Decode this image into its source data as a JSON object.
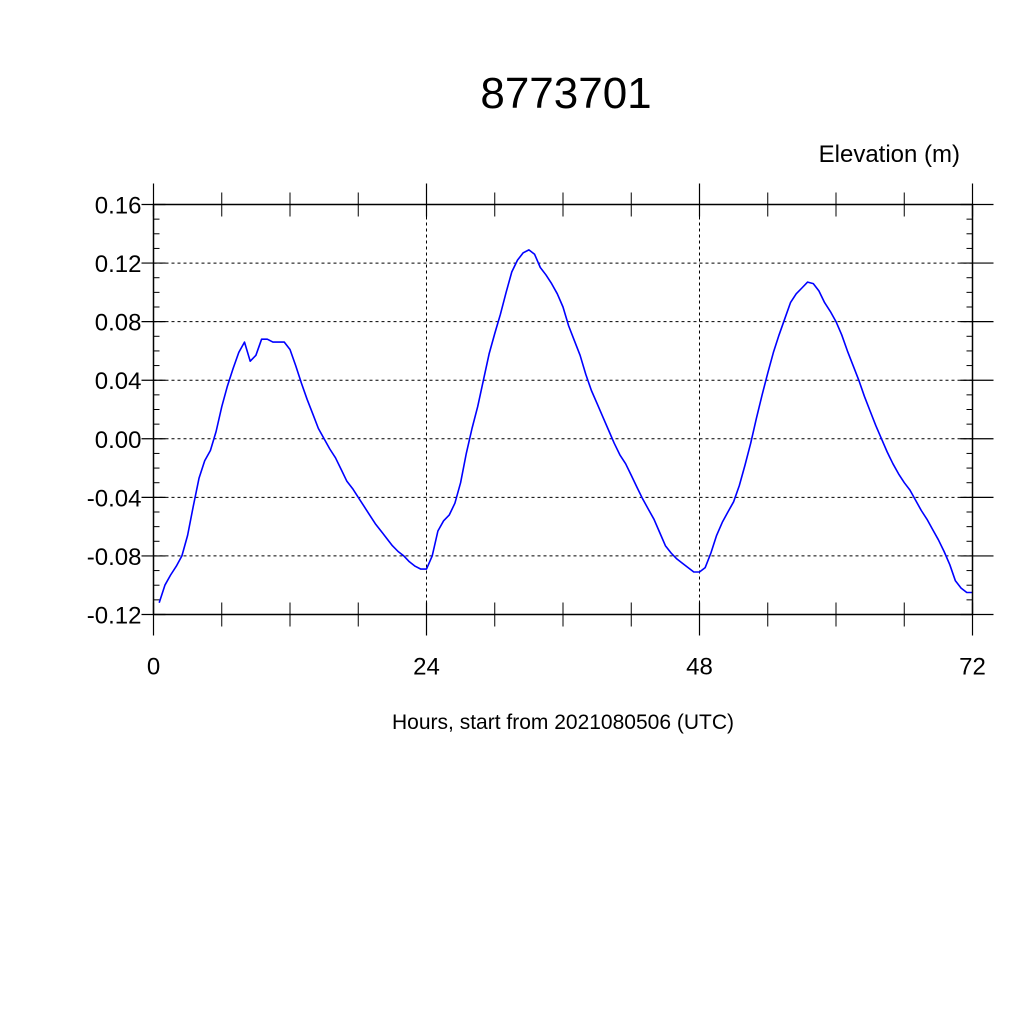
{
  "chart_data": {
    "type": "line",
    "title": "8773701",
    "ylabel": "Elevation (m)",
    "xlabel": "Hours, start from 2021080506 (UTC)",
    "xlim": [
      0,
      72
    ],
    "ylim": [
      -0.12,
      0.16
    ],
    "x_ticks": [
      "0",
      "24",
      "48",
      "72"
    ],
    "y_ticks": [
      "0.16",
      "0.12",
      "0.08",
      "0.04",
      "0.00",
      "-0.04",
      "-0.08",
      "-0.12"
    ],
    "grid": true,
    "line_color": "#0000ff",
    "series": [
      {
        "x": [
          0.5,
          1,
          1.5,
          2,
          2.5,
          3,
          3.5,
          4,
          4.5,
          5,
          5.5,
          6,
          6.5,
          7,
          7.5,
          8,
          8.5,
          9,
          9.5,
          10,
          10.5,
          11,
          11.5,
          12,
          12.5,
          13,
          13.5,
          14,
          14.5,
          15,
          15.5,
          16,
          16.5,
          17,
          17.5,
          18,
          18.5,
          19,
          19.5,
          20,
          20.5,
          21,
          21.5,
          22,
          22.5,
          23,
          23.5,
          24,
          24.5,
          25,
          25.5,
          26,
          26.5,
          27,
          27.5,
          28,
          28.5,
          29,
          29.5,
          30,
          30.5,
          31,
          31.5,
          32,
          32.5,
          33,
          33.5,
          34,
          34.5,
          35,
          35.5,
          36,
          36.5,
          37,
          37.5,
          38,
          38.5,
          39,
          39.5,
          40,
          40.5,
          41,
          41.5,
          42,
          42.5,
          43,
          43.5,
          44,
          44.5,
          45,
          45.5,
          46,
          46.5,
          47,
          47.5,
          48,
          48.5,
          49,
          49.5,
          50,
          50.5,
          51,
          51.5,
          52,
          52.5,
          53,
          53.5,
          54,
          54.5,
          55,
          55.5,
          56,
          56.5,
          57,
          57.5,
          58,
          58.5,
          59,
          59.5,
          60,
          60.5,
          61,
          61.5,
          62,
          62.5,
          63,
          63.5,
          64,
          64.5,
          65,
          65.5,
          66,
          66.5,
          67,
          67.5,
          68,
          68.5,
          69,
          69.5,
          70,
          70.5,
          71,
          71.5,
          72
        ],
        "y": [
          -0.112,
          -0.1,
          -0.093,
          -0.087,
          -0.08,
          -0.066,
          -0.046,
          -0.027,
          -0.015,
          -0.008,
          0.005,
          0.022,
          0.036,
          0.048,
          0.059,
          0.066,
          0.053,
          0.057,
          0.068,
          0.068,
          0.066,
          0.066,
          0.066,
          0.061,
          0.05,
          0.038,
          0.027,
          0.017,
          0.007,
          0.0,
          -0.007,
          -0.013,
          -0.021,
          -0.029,
          -0.034,
          -0.04,
          -0.046,
          -0.052,
          -0.058,
          -0.063,
          -0.068,
          -0.073,
          -0.077,
          -0.08,
          -0.084,
          -0.087,
          -0.089,
          -0.089,
          -0.08,
          -0.063,
          -0.056,
          -0.052,
          -0.044,
          -0.03,
          -0.01,
          0.007,
          0.022,
          0.04,
          0.058,
          0.072,
          0.085,
          0.1,
          0.114,
          0.122,
          0.127,
          0.129,
          0.126,
          0.117,
          0.112,
          0.106,
          0.099,
          0.09,
          0.077,
          0.067,
          0.057,
          0.044,
          0.033,
          0.024,
          0.015,
          0.006,
          -0.003,
          -0.011,
          -0.017,
          -0.025,
          -0.033,
          -0.041,
          -0.048,
          -0.055,
          -0.064,
          -0.073,
          -0.078,
          -0.082,
          -0.085,
          -0.088,
          -0.091,
          -0.091,
          -0.088,
          -0.078,
          -0.066,
          -0.057,
          -0.05,
          -0.043,
          -0.032,
          -0.018,
          -0.003,
          0.014,
          0.03,
          0.045,
          0.059,
          0.071,
          0.082,
          0.093,
          0.099,
          0.103,
          0.107,
          0.106,
          0.101,
          0.093,
          0.087,
          0.08,
          0.071,
          0.06,
          0.05,
          0.04,
          0.029,
          0.019,
          0.009,
          0.0,
          -0.009,
          -0.017,
          -0.024,
          -0.03,
          -0.035,
          -0.042,
          -0.049,
          -0.055,
          -0.062,
          -0.069,
          -0.077,
          -0.086,
          -0.097,
          -0.102,
          -0.105,
          -0.105
        ]
      }
    ]
  }
}
